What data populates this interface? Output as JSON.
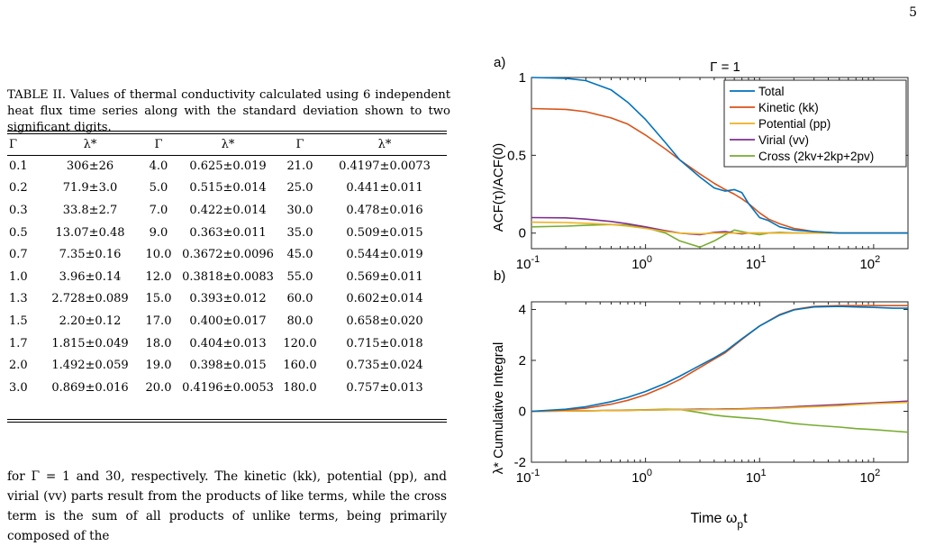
{
  "page_number": "5",
  "table": {
    "caption": "TABLE II. Values of thermal conductivity calculated using 6 independent heat flux time series along with the standard deviation shown to two significant digits.",
    "headers": [
      "Γ",
      "λ*",
      "Γ",
      "λ*",
      "Γ",
      "λ*"
    ],
    "rows": [
      [
        "0.1",
        "306±26",
        "4.0",
        "0.625±0.019",
        "21.0",
        "0.4197±0.0073"
      ],
      [
        "0.2",
        "71.9±3.0",
        "5.0",
        "0.515±0.014",
        "25.0",
        "0.441±0.011"
      ],
      [
        "0.3",
        "33.8±2.7",
        "7.0",
        "0.422±0.014",
        "30.0",
        "0.478±0.016"
      ],
      [
        "0.5",
        "13.07±0.48",
        "9.0",
        "0.363±0.011",
        "35.0",
        "0.509±0.015"
      ],
      [
        "0.7",
        "7.35±0.16",
        "10.0",
        "0.3672±0.0096",
        "45.0",
        "0.544±0.019"
      ],
      [
        "1.0",
        "3.96±0.14",
        "12.0",
        "0.3818±0.0083",
        "55.0",
        "0.569±0.011"
      ],
      [
        "1.3",
        "2.728±0.089",
        "15.0",
        "0.393±0.012",
        "60.0",
        "0.602±0.014"
      ],
      [
        "1.5",
        "2.20±0.12",
        "17.0",
        "0.400±0.017",
        "80.0",
        "0.658±0.020"
      ],
      [
        "1.7",
        "1.815±0.049",
        "18.0",
        "0.404±0.013",
        "120.0",
        "0.715±0.018"
      ],
      [
        "2.0",
        "1.492±0.059",
        "19.0",
        "0.398±0.015",
        "160.0",
        "0.735±0.024"
      ],
      [
        "3.0",
        "0.869±0.016",
        "20.0",
        "0.4196±0.0053",
        "180.0",
        "0.757±0.013"
      ]
    ]
  },
  "body_text": "for Γ = 1 and 30, respectively. The kinetic (kk), potential (pp), and virial (vv) parts result from the products of like terms, while the cross term is the sum of all products of unlike terms, being primarily composed of the",
  "figure": {
    "panel_a_label": "a)",
    "panel_b_label": "b)",
    "panel_a_title": "Γ = 1",
    "x_tick_labels": [
      "10",
      "10",
      "10",
      "10"
    ],
    "x_tick_exponents": [
      "-1",
      "0",
      "1",
      "2"
    ],
    "panel_a_y_ticks": [
      "0",
      "0.5",
      "1"
    ],
    "panel_b_y_ticks": [
      "-2",
      "0",
      "2",
      "4"
    ],
    "panel_a_ylabel": "ACF(τ)/ACF(0)",
    "panel_b_ylabel": "λ* Cumulative Integral",
    "xlabel_main": "Time ω",
    "xlabel_sub": "p",
    "xlabel_end": "t",
    "colors": {
      "total": "#0072BD",
      "kinetic": "#D95319",
      "potential": "#EDB120",
      "virial": "#7E2F8E",
      "cross": "#77AC30"
    }
  },
  "chart_data": [
    {
      "type": "line",
      "title": "Γ = 1",
      "xlabel": "",
      "ylabel": "ACF(τ)/ACF(0)",
      "x_scale": "log",
      "xlim": [
        0.1,
        200
      ],
      "ylim": [
        -0.1,
        1.0
      ],
      "legend_position": "top-right",
      "grid": false,
      "x": [
        0.1,
        0.2,
        0.3,
        0.5,
        0.7,
        1,
        1.5,
        2,
        3,
        4,
        5,
        6,
        7,
        8,
        10,
        12,
        15,
        20,
        30,
        50,
        100,
        200
      ],
      "series": [
        {
          "name": "Total",
          "values": [
            1.0,
            0.995,
            0.98,
            0.92,
            0.84,
            0.73,
            0.58,
            0.47,
            0.36,
            0.29,
            0.27,
            0.28,
            0.26,
            0.19,
            0.1,
            0.08,
            0.04,
            0.02,
            0.01,
            0.0,
            0.0,
            0.0
          ]
        },
        {
          "name": "Kinetic (kk)",
          "values": [
            0.8,
            0.795,
            0.78,
            0.74,
            0.7,
            0.63,
            0.54,
            0.47,
            0.38,
            0.32,
            0.28,
            0.25,
            0.22,
            0.19,
            0.13,
            0.09,
            0.06,
            0.03,
            0.01,
            0.0,
            0.0,
            0.0
          ]
        },
        {
          "name": "Potential (pp)",
          "values": [
            0.07,
            0.068,
            0.063,
            0.055,
            0.045,
            0.03,
            0.01,
            0.0,
            -0.005,
            0.0,
            0.0,
            0.0,
            0.0,
            0.0,
            0.0,
            0.0,
            0.0,
            0.0,
            0.0,
            0.0,
            0.0,
            0.0
          ]
        },
        {
          "name": "Virial (vv)",
          "values": [
            0.1,
            0.098,
            0.09,
            0.075,
            0.06,
            0.04,
            0.015,
            0.0,
            -0.01,
            0.005,
            0.01,
            0.0,
            -0.005,
            0.0,
            0.0,
            0.0,
            0.0,
            0.0,
            0.0,
            0.0,
            0.0,
            0.0
          ]
        },
        {
          "name": "Cross (2kv+2kp+2pv)",
          "values": [
            0.04,
            0.045,
            0.05,
            0.055,
            0.05,
            0.035,
            0.0,
            -0.05,
            -0.09,
            -0.05,
            -0.01,
            0.02,
            0.01,
            0.0,
            -0.01,
            0.0,
            0.005,
            0.0,
            0.0,
            0.0,
            0.0,
            0.0
          ]
        }
      ]
    },
    {
      "type": "line",
      "title": "",
      "xlabel": "Time ωpt",
      "ylabel": "λ* Cumulative Integral",
      "x_scale": "log",
      "xlim": [
        0.1,
        200
      ],
      "ylim": [
        -2,
        4.3
      ],
      "grid": false,
      "x": [
        0.1,
        0.2,
        0.3,
        0.5,
        0.7,
        1,
        1.5,
        2,
        3,
        4,
        5,
        7,
        10,
        15,
        20,
        30,
        50,
        70,
        100,
        150,
        200
      ],
      "series": [
        {
          "name": "Total",
          "values": [
            0.0,
            0.08,
            0.18,
            0.38,
            0.55,
            0.78,
            1.1,
            1.38,
            1.8,
            2.1,
            2.35,
            2.85,
            3.35,
            3.78,
            3.98,
            4.1,
            4.12,
            4.1,
            4.08,
            4.05,
            4.05
          ]
        },
        {
          "name": "Kinetic (kk)",
          "values": [
            0.0,
            0.05,
            0.12,
            0.28,
            0.43,
            0.65,
            0.98,
            1.25,
            1.72,
            2.05,
            2.3,
            2.82,
            3.35,
            3.8,
            4.0,
            4.12,
            4.15,
            4.15,
            4.15,
            4.15,
            4.15
          ]
        },
        {
          "name": "Potential (pp)",
          "values": [
            0.0,
            0.01,
            0.02,
            0.03,
            0.04,
            0.05,
            0.06,
            0.06,
            0.06,
            0.07,
            0.07,
            0.08,
            0.1,
            0.12,
            0.15,
            0.18,
            0.22,
            0.26,
            0.3,
            0.33,
            0.35
          ]
        },
        {
          "name": "Virial (vv)",
          "values": [
            0.0,
            0.01,
            0.02,
            0.03,
            0.04,
            0.05,
            0.06,
            0.07,
            0.08,
            0.08,
            0.09,
            0.1,
            0.12,
            0.15,
            0.18,
            0.22,
            0.26,
            0.3,
            0.33,
            0.37,
            0.4
          ]
        },
        {
          "name": "Cross (2kv+2kp+2pv)",
          "values": [
            0.0,
            0.01,
            0.02,
            0.03,
            0.05,
            0.06,
            0.08,
            0.07,
            -0.05,
            -0.15,
            -0.2,
            -0.25,
            -0.3,
            -0.4,
            -0.48,
            -0.55,
            -0.62,
            -0.68,
            -0.72,
            -0.78,
            -0.82
          ]
        }
      ]
    }
  ]
}
